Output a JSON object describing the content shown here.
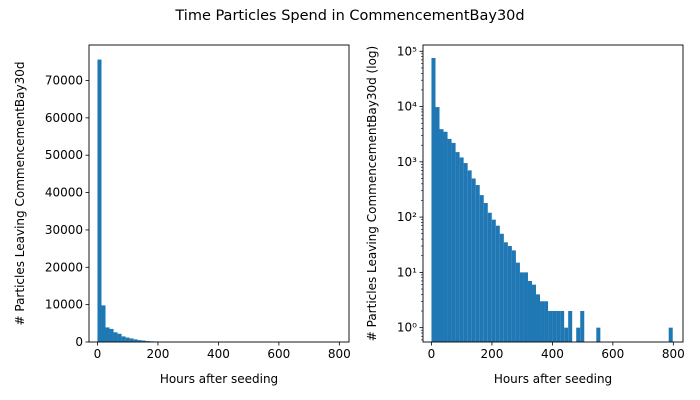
{
  "figure": {
    "suptitle": "Time Particles Spend in CommencementBay30d",
    "bar_color": "#1f77b4"
  },
  "chart_data": [
    {
      "type": "bar",
      "title": "",
      "xlabel": "Hours after seeding",
      "ylabel": "# Particles Leaving CommencementBay30d",
      "yscale": "linear",
      "xlim": [
        -28,
        832
      ],
      "ylim": [
        0,
        79500
      ],
      "xticks": [
        0,
        200,
        400,
        600,
        800
      ],
      "yticks": [
        0,
        10000,
        20000,
        30000,
        40000,
        50000,
        60000,
        70000
      ],
      "ytick_labels": [
        "0",
        "10000",
        "20000",
        "30000",
        "40000",
        "50000",
        "60000",
        "70000"
      ],
      "bin_width": 13.3,
      "bin_starts": [
        0,
        13.3,
        26.6,
        39.9,
        53.2,
        66.5,
        79.8,
        93.1,
        106.4,
        119.7,
        133,
        146.3,
        159.6,
        172.9,
        186.2,
        199.5,
        212.8,
        226.1,
        239.4
      ],
      "counts": [
        75600,
        9800,
        3900,
        3500,
        2600,
        2200,
        1500,
        1200,
        950,
        700,
        500,
        380,
        250,
        180,
        120,
        90,
        70,
        50,
        35
      ]
    },
    {
      "type": "bar",
      "title": "",
      "xlabel": "Hours after seeding",
      "ylabel": "# Particles Leaving CommencementBay30d (log)",
      "yscale": "log",
      "xlim": [
        -28,
        832
      ],
      "ylim": [
        0.55,
        130000
      ],
      "xticks": [
        0,
        200,
        400,
        600,
        800
      ],
      "yticks": [
        1,
        10,
        100,
        1000,
        10000,
        100000
      ],
      "ytick_labels": [
        "10⁰",
        "10¹",
        "10²",
        "10³",
        "10⁴",
        "10⁵"
      ],
      "bin_width": 13.3,
      "bin_starts": [
        0,
        13.3,
        26.6,
        39.9,
        53.2,
        66.5,
        79.8,
        93.1,
        106.4,
        119.7,
        133,
        146.3,
        159.6,
        172.9,
        186.2,
        199.5,
        212.8,
        226.1,
        239.4,
        252.7,
        266,
        279.3,
        292.6,
        305.9,
        319.2,
        332.5,
        345.8,
        359.1,
        372.4,
        385.7,
        399,
        412.3,
        425.6,
        438.9,
        452.2,
        478.8,
        492.1,
        545.3,
        784.7
      ],
      "counts": [
        75600,
        9800,
        3900,
        3500,
        2600,
        2200,
        1500,
        1200,
        950,
        700,
        500,
        380,
        250,
        180,
        120,
        90,
        70,
        50,
        35,
        30,
        25,
        15,
        10,
        10,
        7,
        6,
        4,
        3,
        3,
        2,
        2,
        2,
        2,
        1,
        2,
        1,
        2,
        1,
        1
      ]
    }
  ]
}
